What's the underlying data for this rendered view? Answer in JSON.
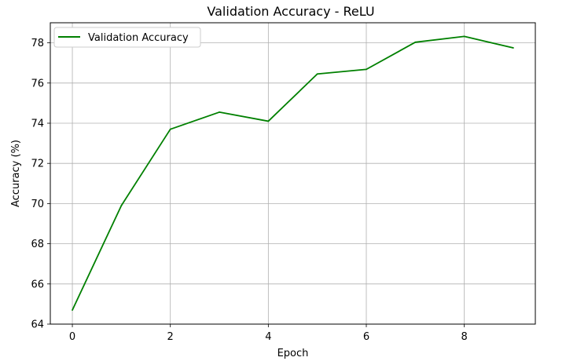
{
  "chart_data": {
    "type": "line",
    "title": "Validation Accuracy - ReLU",
    "xlabel": "Epoch",
    "ylabel": "Accuracy (%)",
    "x": [
      0,
      1,
      2,
      3,
      4,
      5,
      6,
      7,
      8,
      9
    ],
    "series": [
      {
        "name": "Validation Accuracy",
        "color": "#008000",
        "values": [
          64.7,
          69.9,
          73.7,
          74.55,
          74.1,
          76.45,
          76.68,
          78.03,
          78.32,
          77.75
        ]
      }
    ],
    "xlim": [
      -0.45,
      9.45
    ],
    "ylim": [
      64,
      79
    ],
    "xticks": [
      0,
      2,
      4,
      6,
      8
    ],
    "yticks": [
      64,
      66,
      68,
      70,
      72,
      74,
      76,
      78
    ],
    "xtick_labels": [
      "0",
      "2",
      "4",
      "6",
      "8"
    ],
    "ytick_labels": [
      "64",
      "66",
      "68",
      "70",
      "72",
      "74",
      "76",
      "78"
    ],
    "grid": true,
    "legend_position": "top-left"
  }
}
